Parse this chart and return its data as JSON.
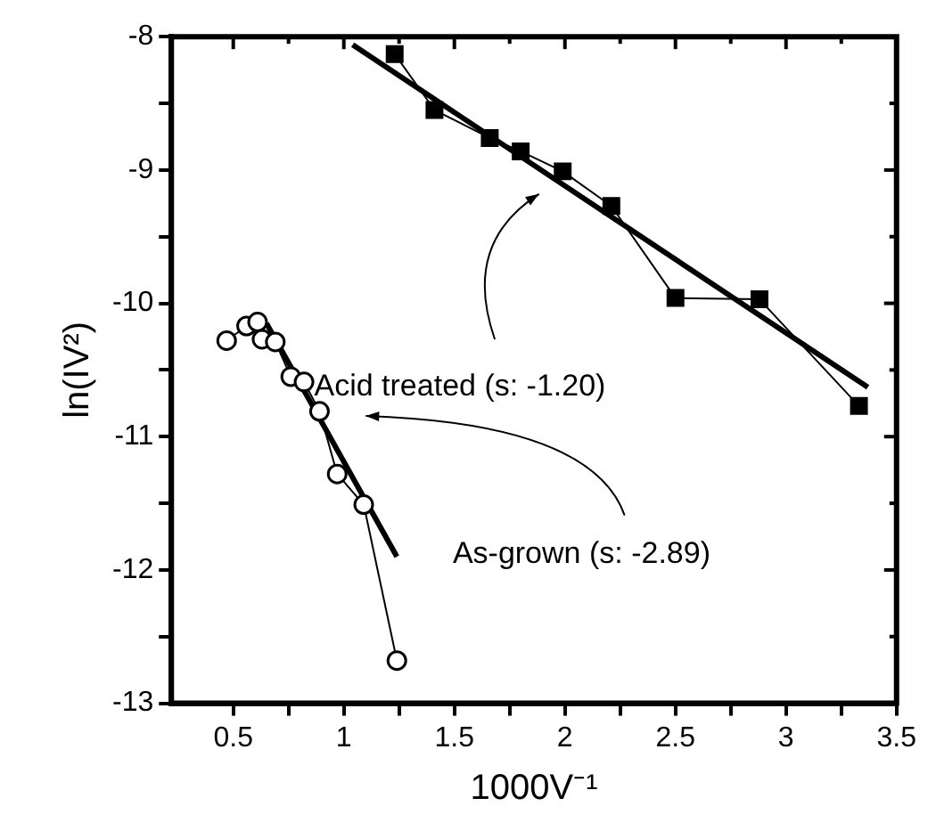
{
  "chart_data": {
    "type": "line",
    "xlabel": "1000V⁻¹",
    "ylabel": "ln(IV²)",
    "xlim": [
      0.22,
      3.5
    ],
    "ylim": [
      -13,
      -8
    ],
    "xticks": [
      0.5,
      {
        "value": 0.75,
        "label": null
      },
      1.0,
      {
        "value": 1.25,
        "label": null
      },
      1.5,
      {
        "value": 1.75,
        "label": null
      },
      2.0,
      {
        "value": 2.25,
        "label": null
      },
      2.5,
      {
        "value": 2.75,
        "label": null
      },
      3.0,
      {
        "value": 3.25,
        "label": null
      },
      3.5
    ],
    "yticks": [
      -13,
      {
        "value": -12.5,
        "label": null
      },
      -12,
      {
        "value": -11.5,
        "label": null
      },
      -11,
      {
        "value": -10.5,
        "label": null
      },
      -10,
      {
        "value": -9.5,
        "label": null
      },
      -9,
      {
        "value": -8.5,
        "label": null
      },
      -8
    ],
    "series": [
      {
        "color": "#000000",
        "marker": "square",
        "x": [
          1.23,
          1.41,
          1.66,
          1.8,
          1.99,
          2.21,
          2.5,
          2.88,
          3.33
        ],
        "values": [
          -8.13,
          -8.55,
          -8.76,
          -8.86,
          -9.01,
          -9.27,
          -9.96,
          -9.97,
          -10.77
        ]
      },
      {
        "color": "#000000",
        "marker": "none",
        "x": [
          1.04,
          3.37
        ],
        "values": [
          -8.06,
          -10.63
        ]
      },
      {
        "color": "#000000",
        "marker": "circle",
        "x": [
          0.47,
          0.56,
          0.61,
          0.63,
          0.69,
          0.76,
          0.82,
          0.89,
          0.97,
          1.09,
          1.24
        ],
        "values": [
          -10.28,
          -10.17,
          -10.14,
          -10.27,
          -10.29,
          -10.55,
          -10.59,
          -10.81,
          -11.28,
          -11.51,
          -12.68
        ]
      },
      {
        "color": "#000000",
        "marker": "none",
        "x": [
          0.65,
          1.24
        ],
        "values": [
          -10.15,
          -11.9
        ]
      }
    ],
    "annotations": [
      "Acid treated (s: -1.20)",
      "As-grown (s: -2.89)"
    ]
  }
}
